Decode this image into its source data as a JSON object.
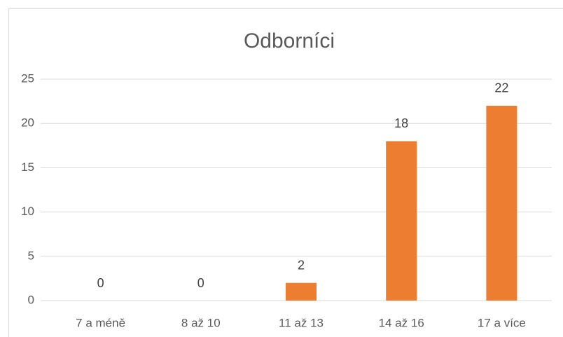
{
  "chart_data": {
    "type": "bar",
    "title": "Odborníci",
    "categories": [
      "7 a méně",
      "8 až 10",
      "11 až 13",
      "14 až 16",
      "17 a více"
    ],
    "values": [
      0,
      0,
      2,
      18,
      22
    ],
    "color": "#ed7d31",
    "ylim": [
      0,
      25
    ],
    "yticks": [
      0,
      5,
      10,
      15,
      20,
      25
    ],
    "grid": true
  }
}
